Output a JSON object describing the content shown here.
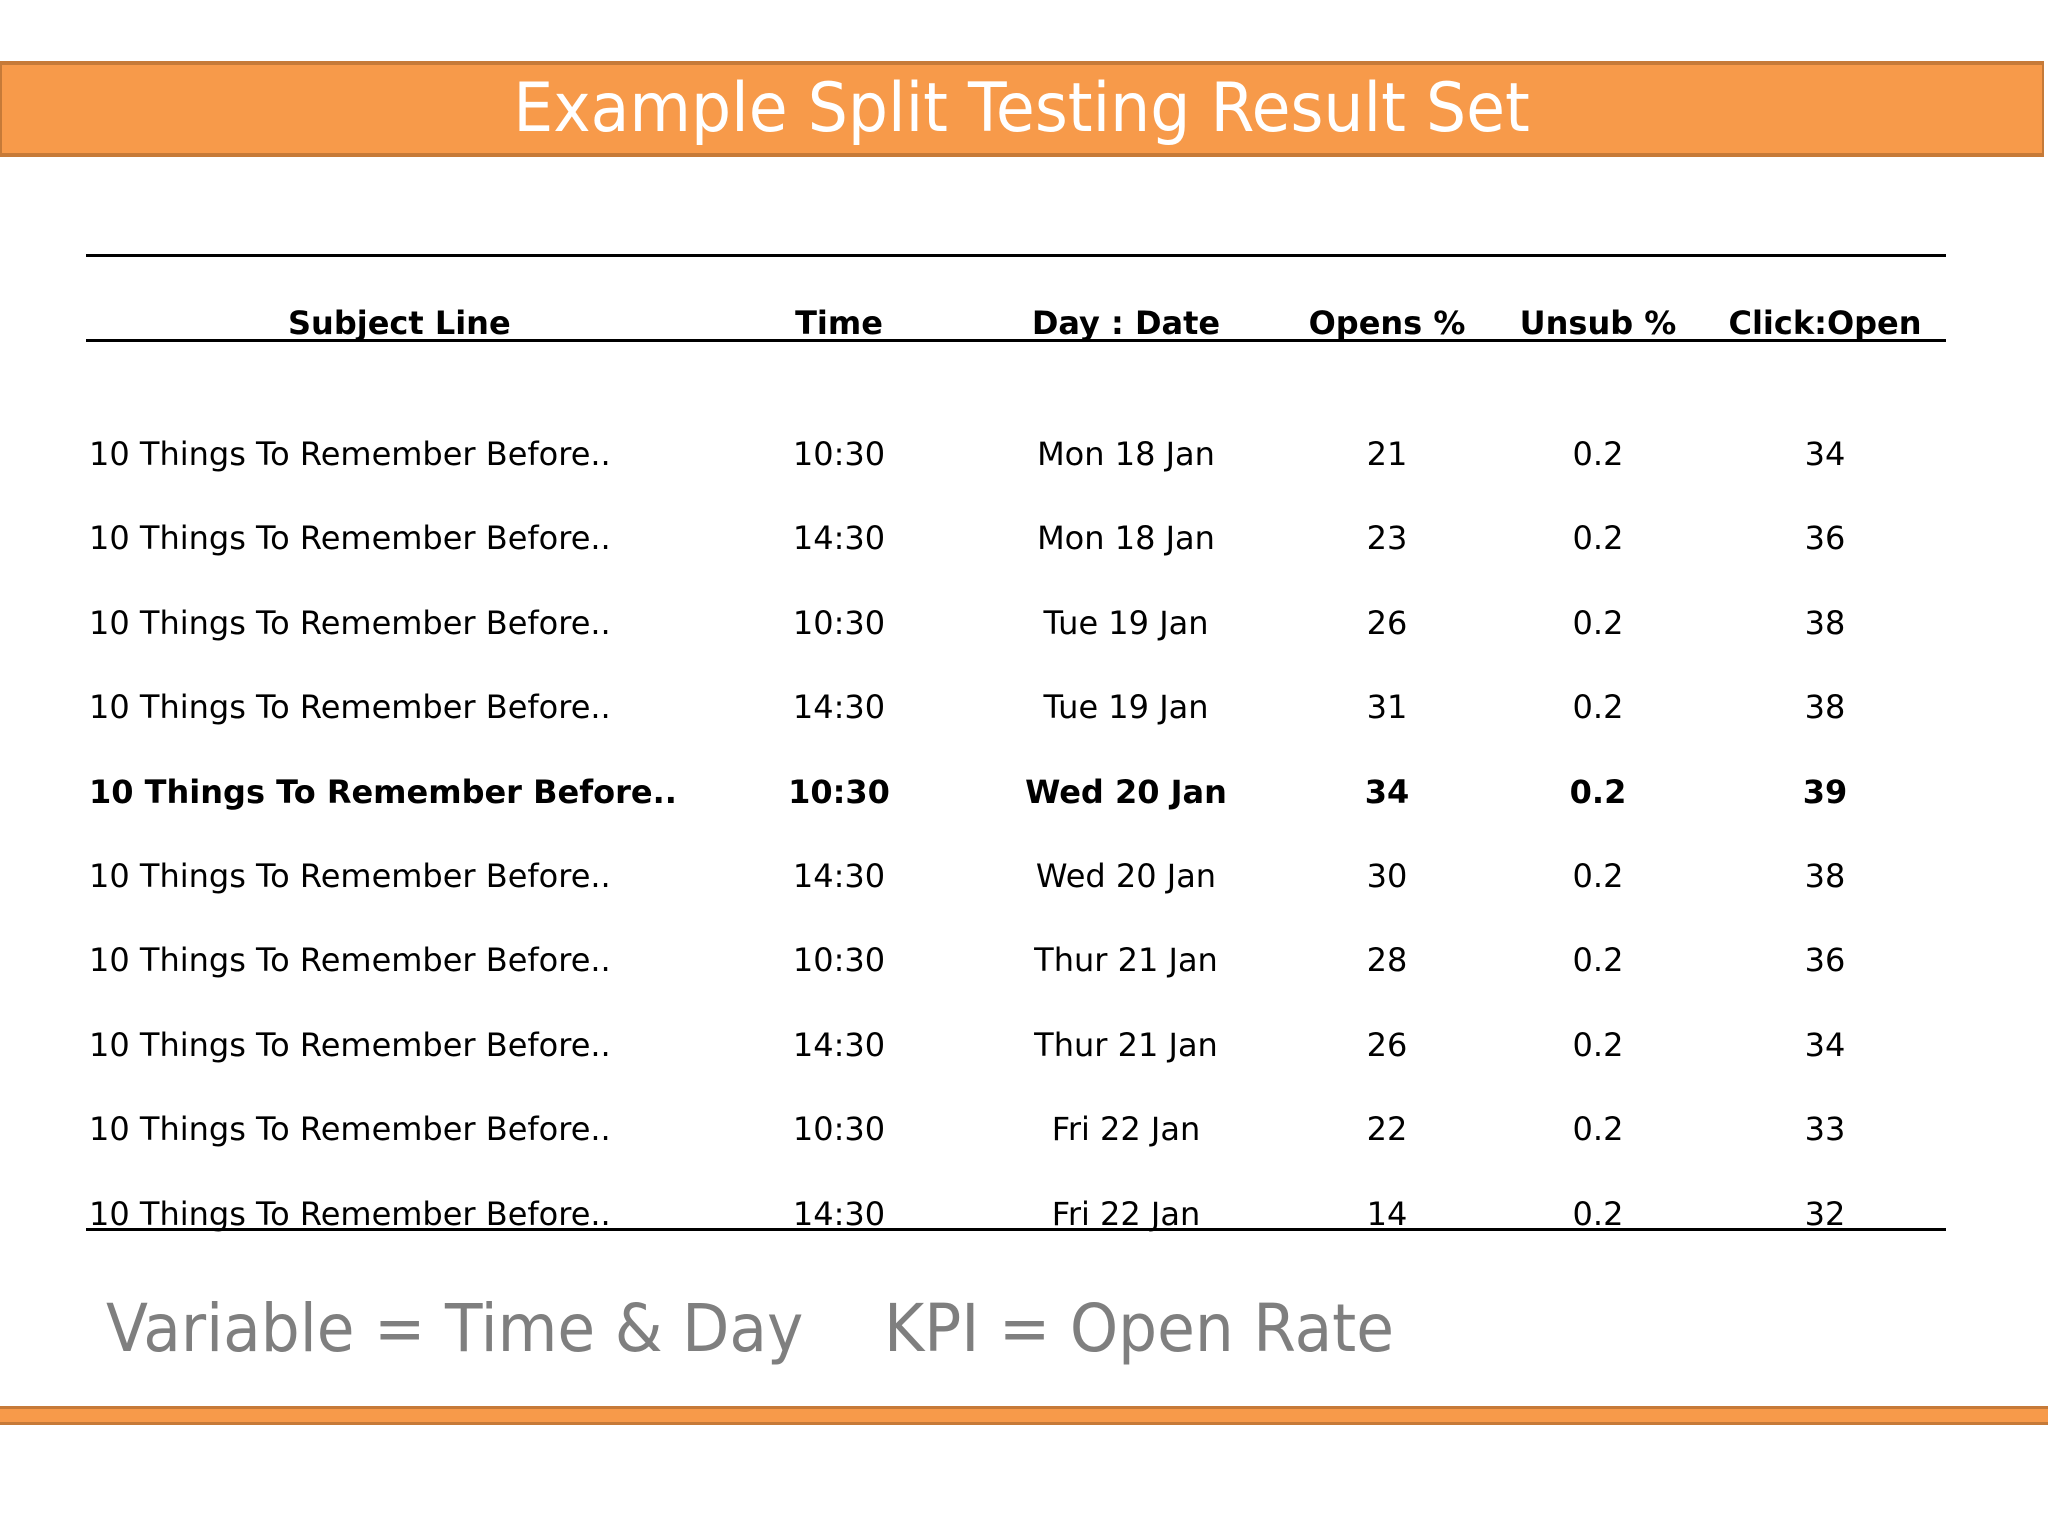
{
  "title": "Example Split Testing Result Set",
  "table": {
    "headers": {
      "subject": "Subject Line",
      "time": "Time",
      "date": "Day : Date",
      "opens": "Opens %",
      "unsub": "Unsub %",
      "click": "Click:Open"
    },
    "rows": [
      {
        "subject": "10 Things To Remember Before..",
        "time": "10:30",
        "date": "Mon 18 Jan",
        "opens": "21",
        "unsub": "0.2",
        "click": "34"
      },
      {
        "subject": "10 Things To Remember Before..",
        "time": "14:30",
        "date": "Mon 18 Jan",
        "opens": "23",
        "unsub": "0.2",
        "click": "36"
      },
      {
        "subject": "10 Things To Remember Before..",
        "time": "10:30",
        "date": "Tue 19 Jan",
        "opens": "26",
        "unsub": "0.2",
        "click": "38"
      },
      {
        "subject": "10 Things To Remember Before..",
        "time": "14:30",
        "date": "Tue 19 Jan",
        "opens": "31",
        "unsub": "0.2",
        "click": "38"
      },
      {
        "subject": "10 Things To Remember Before..",
        "time": "10:30",
        "date": "Wed 20 Jan",
        "opens": "34",
        "unsub": "0.2",
        "click": "39",
        "highlight": true
      },
      {
        "subject": "10 Things To Remember Before..",
        "time": "14:30",
        "date": "Wed 20 Jan",
        "opens": "30",
        "unsub": "0.2",
        "click": "38"
      },
      {
        "subject": "10 Things To Remember Before..",
        "time": "10:30",
        "date": "Thur 21 Jan",
        "opens": "28",
        "unsub": "0.2",
        "click": "36"
      },
      {
        "subject": "10 Things To Remember Before..",
        "time": "14:30",
        "date": "Thur 21 Jan",
        "opens": "26",
        "unsub": "0.2",
        "click": "34"
      },
      {
        "subject": "10 Things To Remember Before..",
        "time": "10:30",
        "date": "Fri 22 Jan",
        "opens": "22",
        "unsub": "0.2",
        "click": "33"
      },
      {
        "subject": "10 Things To Remember Before..",
        "time": "14:30",
        "date": "Fri 22 Jan",
        "opens": "14",
        "unsub": "0.2",
        "click": "32"
      }
    ]
  },
  "footer": {
    "variable": "Variable = Time & Day",
    "kpi": "KPI = Open Rate"
  },
  "colors": {
    "banner": "#f79a4a",
    "banner_border": "#c67a38",
    "footer_text": "#7f7f7f"
  }
}
